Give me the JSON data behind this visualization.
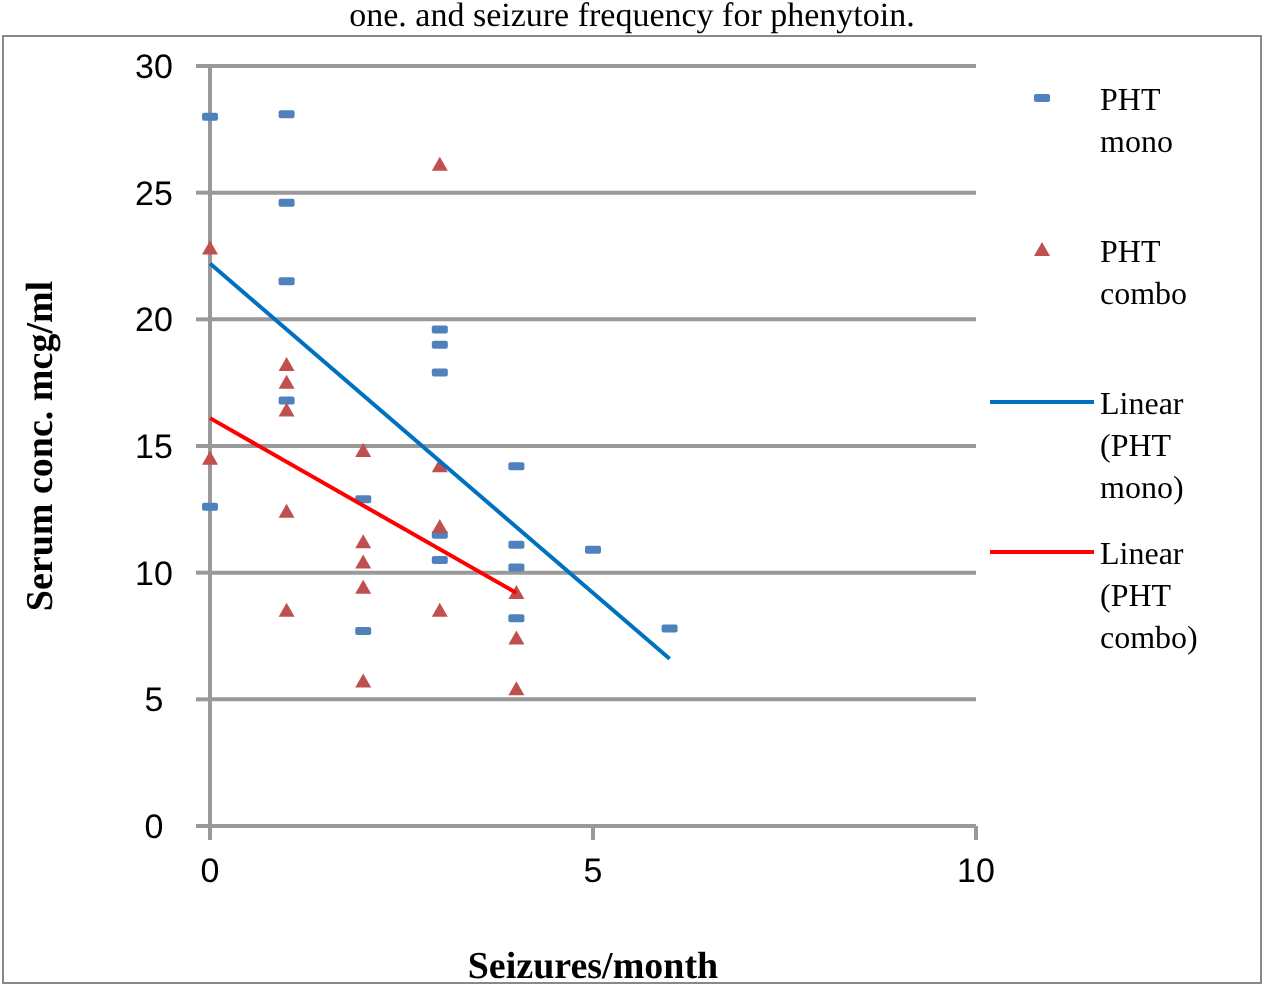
{
  "chart_data": {
    "type": "scatter",
    "title": "one. and seizure frequency for phenytoin.",
    "xlabel": "Seizures/month",
    "ylabel": "Serum conc. mcg/ml",
    "xlim": [
      0,
      10
    ],
    "xticks": [
      0,
      5,
      10
    ],
    "ylim": [
      0,
      30
    ],
    "yticks": [
      0,
      5,
      10,
      15,
      20,
      25,
      30
    ],
    "grid": "y",
    "legend": "right",
    "series": [
      {
        "name": "PHT mono",
        "marker": "square",
        "color": "#4f81bd",
        "x": [
          0,
          0,
          1,
          1,
          1,
          1,
          2,
          2,
          3,
          3,
          3,
          3,
          3,
          4,
          4,
          4,
          4,
          5,
          6
        ],
        "values": [
          28,
          12.6,
          28.1,
          24.6,
          21.5,
          16.8,
          12.9,
          7.7,
          19.6,
          19,
          17.9,
          11.5,
          10.5,
          14.2,
          11.1,
          10.2,
          8.2,
          10.9,
          7.8
        ]
      },
      {
        "name": "PHT combo",
        "marker": "triangle",
        "color": "#c0504d",
        "x": [
          0,
          0,
          1,
          1,
          1,
          1,
          1,
          2,
          2,
          2,
          2,
          2,
          3,
          3,
          3,
          3,
          4,
          4,
          4
        ],
        "values": [
          22.8,
          14.5,
          18.2,
          17.5,
          16.4,
          12.4,
          8.5,
          14.8,
          11.2,
          10.4,
          9.4,
          5.7,
          26.1,
          14.2,
          11.8,
          8.5,
          9.2,
          7.4,
          5.4
        ]
      },
      {
        "name": "Linear (PHT mono)",
        "type": "line",
        "marker": "none",
        "color": "#0070c0",
        "x": [
          0,
          6
        ],
        "values": [
          22.2,
          6.6
        ]
      },
      {
        "name": "Linear (PHT combo)",
        "type": "line",
        "marker": "none",
        "color": "#ff0000",
        "x": [
          0,
          4
        ],
        "values": [
          16.1,
          9.2
        ]
      }
    ]
  }
}
